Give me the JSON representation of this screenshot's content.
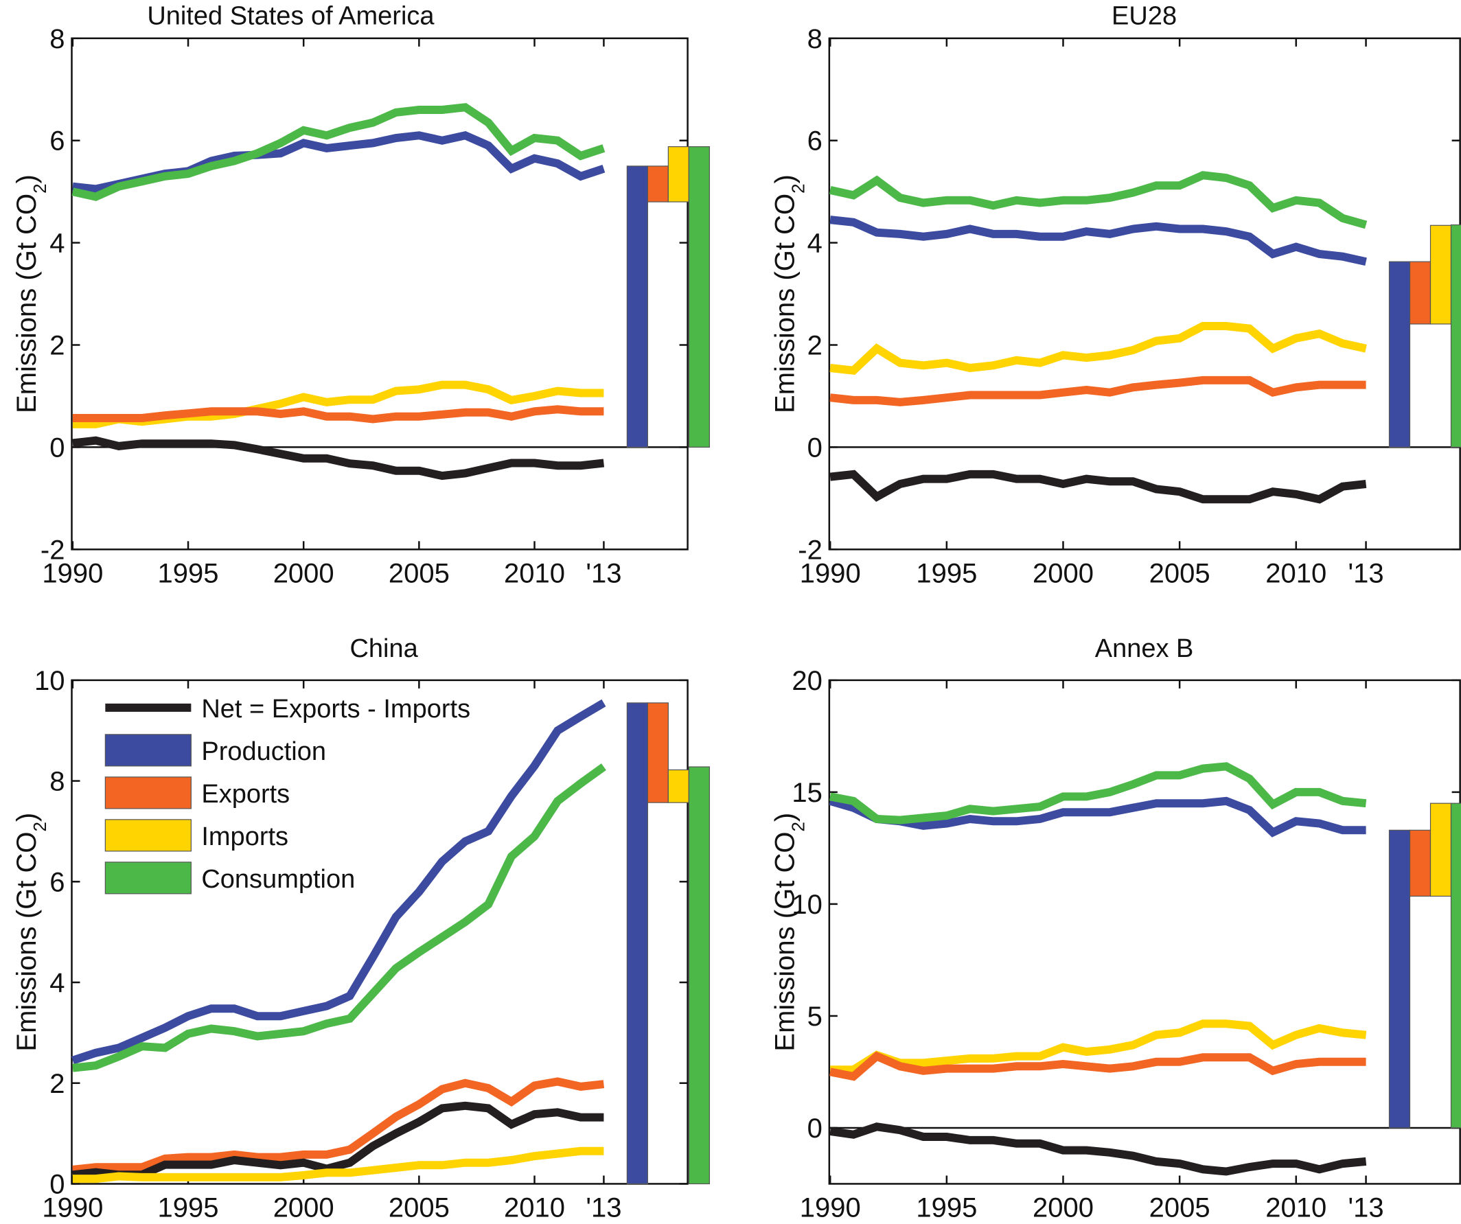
{
  "colors": {
    "net": "#231f20",
    "production": "#3c4ba0",
    "exports": "#f26522",
    "imports": "#ffd400",
    "consumption": "#4cb848",
    "axis": "#111111"
  },
  "legend": {
    "placement": "top-left of China panel",
    "entries": [
      {
        "key": "net",
        "label": "Net = Exports - Imports",
        "style": "line"
      },
      {
        "key": "production",
        "label": "Production",
        "style": "patch"
      },
      {
        "key": "exports",
        "label": "Exports",
        "style": "patch"
      },
      {
        "key": "imports",
        "label": "Imports",
        "style": "patch"
      },
      {
        "key": "consumption",
        "label": "Consumption",
        "style": "patch"
      }
    ]
  },
  "chart_data": [
    {
      "type": "line",
      "title": "United States of America",
      "xlabel": "",
      "ylabel": "Emissions (Gt CO2)",
      "ylim": [
        -2,
        8
      ],
      "yticks": [
        -2,
        0,
        2,
        4,
        6,
        8
      ],
      "xticks": [
        1990,
        1995,
        2000,
        2005,
        2010,
        2013
      ],
      "xtick_labels": [
        "1990",
        "1995",
        "2000",
        "2005",
        "2010",
        "'13"
      ],
      "x": [
        1990,
        1991,
        1992,
        1993,
        1994,
        1995,
        1996,
        1997,
        1998,
        1999,
        2000,
        2001,
        2002,
        2003,
        2004,
        2005,
        2006,
        2007,
        2008,
        2009,
        2010,
        2011,
        2012,
        2013
      ],
      "series": [
        {
          "key": "production",
          "name": "Production",
          "values": [
            5.1,
            5.05,
            5.15,
            5.25,
            5.35,
            5.4,
            5.6,
            5.7,
            5.72,
            5.75,
            5.95,
            5.85,
            5.9,
            5.95,
            6.05,
            6.1,
            6.0,
            6.1,
            5.9,
            5.45,
            5.65,
            5.55,
            5.3,
            5.45
          ]
        },
        {
          "key": "consumption",
          "name": "Consumption",
          "values": [
            5.0,
            4.9,
            5.1,
            5.2,
            5.3,
            5.35,
            5.5,
            5.6,
            5.75,
            5.95,
            6.2,
            6.1,
            6.25,
            6.35,
            6.55,
            6.6,
            6.6,
            6.65,
            6.35,
            5.8,
            6.05,
            6.0,
            5.7,
            5.85
          ]
        },
        {
          "key": "imports",
          "name": "Imports",
          "values": [
            0.45,
            0.45,
            0.55,
            0.5,
            0.55,
            0.6,
            0.6,
            0.65,
            0.75,
            0.85,
            0.98,
            0.88,
            0.93,
            0.93,
            1.1,
            1.13,
            1.22,
            1.22,
            1.13,
            0.92,
            1.0,
            1.1,
            1.06,
            1.06
          ]
        },
        {
          "key": "exports",
          "name": "Exports",
          "values": [
            0.57,
            0.57,
            0.57,
            0.57,
            0.62,
            0.66,
            0.7,
            0.7,
            0.7,
            0.65,
            0.7,
            0.6,
            0.6,
            0.55,
            0.6,
            0.6,
            0.64,
            0.68,
            0.68,
            0.6,
            0.7,
            0.74,
            0.7,
            0.7
          ]
        },
        {
          "key": "net",
          "name": "Net = Exports - Imports",
          "values": [
            0.08,
            0.13,
            0.02,
            0.07,
            0.07,
            0.07,
            0.07,
            0.04,
            -0.04,
            -0.13,
            -0.22,
            -0.22,
            -0.32,
            -0.36,
            -0.46,
            -0.46,
            -0.56,
            -0.51,
            -0.41,
            -0.31,
            -0.31,
            -0.36,
            -0.36,
            -0.31
          ]
        }
      ],
      "bars_2013": {
        "production": 5.5,
        "exports": 0.7,
        "imports": 1.08,
        "consumption": 5.88
      }
    },
    {
      "type": "line",
      "title": "EU28",
      "xlabel": "",
      "ylabel": "Emissions (Gt CO2)",
      "ylim": [
        -2,
        8
      ],
      "yticks": [
        -2,
        0,
        2,
        4,
        6,
        8
      ],
      "xticks": [
        1990,
        1995,
        2000,
        2005,
        2010,
        2013
      ],
      "xtick_labels": [
        "1990",
        "1995",
        "2000",
        "2005",
        "2010",
        "'13"
      ],
      "x": [
        1990,
        1991,
        1992,
        1993,
        1994,
        1995,
        1996,
        1997,
        1998,
        1999,
        2000,
        2001,
        2002,
        2003,
        2004,
        2005,
        2006,
        2007,
        2008,
        2009,
        2010,
        2011,
        2012,
        2013
      ],
      "series": [
        {
          "key": "production",
          "name": "Production",
          "values": [
            4.45,
            4.4,
            4.2,
            4.17,
            4.12,
            4.17,
            4.27,
            4.17,
            4.17,
            4.12,
            4.12,
            4.22,
            4.17,
            4.27,
            4.32,
            4.27,
            4.27,
            4.22,
            4.12,
            3.78,
            3.92,
            3.78,
            3.73,
            3.63
          ]
        },
        {
          "key": "consumption",
          "name": "Consumption",
          "values": [
            5.03,
            4.93,
            5.22,
            4.88,
            4.78,
            4.83,
            4.83,
            4.73,
            4.83,
            4.78,
            4.83,
            4.83,
            4.88,
            4.98,
            5.12,
            5.12,
            5.32,
            5.27,
            5.12,
            4.68,
            4.83,
            4.78,
            4.48,
            4.35
          ]
        },
        {
          "key": "imports",
          "name": "Imports",
          "values": [
            1.55,
            1.5,
            1.93,
            1.65,
            1.6,
            1.65,
            1.55,
            1.6,
            1.7,
            1.65,
            1.8,
            1.75,
            1.8,
            1.9,
            2.08,
            2.13,
            2.37,
            2.37,
            2.32,
            1.93,
            2.13,
            2.22,
            2.03,
            1.93
          ]
        },
        {
          "key": "exports",
          "name": "Exports",
          "values": [
            0.97,
            0.92,
            0.92,
            0.88,
            0.92,
            0.97,
            1.02,
            1.02,
            1.02,
            1.02,
            1.07,
            1.12,
            1.07,
            1.17,
            1.22,
            1.26,
            1.31,
            1.31,
            1.31,
            1.07,
            1.17,
            1.22,
            1.22,
            1.22
          ]
        },
        {
          "key": "net",
          "name": "Net = Exports - Imports",
          "values": [
            -0.58,
            -0.53,
            -0.97,
            -0.72,
            -0.62,
            -0.62,
            -0.53,
            -0.53,
            -0.62,
            -0.62,
            -0.72,
            -0.62,
            -0.67,
            -0.67,
            -0.82,
            -0.87,
            -1.02,
            -1.02,
            -1.02,
            -0.87,
            -0.92,
            -1.02,
            -0.77,
            -0.72
          ]
        }
      ],
      "bars_2013": {
        "production": 3.63,
        "exports": 1.22,
        "imports": 1.93,
        "consumption": 4.35
      }
    },
    {
      "type": "line",
      "title": "China",
      "xlabel": "",
      "ylabel": "Emissions (Gt CO2)",
      "ylim": [
        0,
        10
      ],
      "yticks": [
        0,
        2,
        4,
        6,
        8,
        10
      ],
      "xticks": [
        1990,
        1995,
        2000,
        2005,
        2010,
        2013
      ],
      "xtick_labels": [
        "1990",
        "1995",
        "2000",
        "2005",
        "2010",
        "'13"
      ],
      "x": [
        1990,
        1991,
        1992,
        1993,
        1994,
        1995,
        1996,
        1997,
        1998,
        1999,
        2000,
        2001,
        2002,
        2003,
        2004,
        2005,
        2006,
        2007,
        2008,
        2009,
        2010,
        2011,
        2012,
        2013
      ],
      "series": [
        {
          "key": "production",
          "name": "Production",
          "values": [
            2.45,
            2.6,
            2.7,
            2.9,
            3.1,
            3.33,
            3.48,
            3.48,
            3.33,
            3.33,
            3.43,
            3.53,
            3.73,
            4.5,
            5.3,
            5.8,
            6.4,
            6.8,
            7.0,
            7.7,
            8.3,
            9.0,
            9.28,
            9.55
          ]
        },
        {
          "key": "consumption",
          "name": "Consumption",
          "values": [
            2.3,
            2.35,
            2.53,
            2.73,
            2.7,
            2.98,
            3.08,
            3.03,
            2.93,
            2.98,
            3.03,
            3.18,
            3.28,
            3.78,
            4.28,
            4.6,
            4.9,
            5.2,
            5.55,
            6.5,
            6.9,
            7.6,
            7.95,
            8.28
          ]
        },
        {
          "key": "exports",
          "name": "Exports",
          "values": [
            0.28,
            0.33,
            0.33,
            0.33,
            0.5,
            0.53,
            0.53,
            0.58,
            0.53,
            0.53,
            0.58,
            0.58,
            0.68,
            1.0,
            1.33,
            1.58,
            1.88,
            2.0,
            1.9,
            1.63,
            1.95,
            2.03,
            1.93,
            1.98
          ]
        },
        {
          "key": "net",
          "name": "Net = Exports - Imports",
          "values": [
            0.18,
            0.23,
            0.18,
            0.18,
            0.38,
            0.38,
            0.38,
            0.47,
            0.42,
            0.37,
            0.42,
            0.3,
            0.42,
            0.75,
            1.0,
            1.23,
            1.5,
            1.55,
            1.5,
            1.18,
            1.38,
            1.42,
            1.32,
            1.32
          ]
        },
        {
          "key": "imports",
          "name": "Imports",
          "values": [
            0.1,
            0.1,
            0.15,
            0.13,
            0.13,
            0.13,
            0.13,
            0.13,
            0.13,
            0.13,
            0.17,
            0.22,
            0.22,
            0.27,
            0.32,
            0.37,
            0.37,
            0.42,
            0.42,
            0.47,
            0.55,
            0.6,
            0.65,
            0.65
          ]
        }
      ],
      "bars_2013": {
        "production": 9.55,
        "exports": 1.98,
        "imports": 0.65,
        "consumption": 8.28
      }
    },
    {
      "type": "line",
      "title": "Annex B",
      "xlabel": "",
      "ylabel": "Emissions (Gt CO2)",
      "ylim": [
        -2.5,
        20
      ],
      "yticks": [
        0,
        5,
        10,
        15,
        20
      ],
      "xticks": [
        1990,
        1995,
        2000,
        2005,
        2010,
        2013
      ],
      "xtick_labels": [
        "1990",
        "1995",
        "2000",
        "2005",
        "2010",
        "'13"
      ],
      "x": [
        1990,
        1991,
        1992,
        1993,
        1994,
        1995,
        1996,
        1997,
        1998,
        1999,
        2000,
        2001,
        2002,
        2003,
        2004,
        2005,
        2006,
        2007,
        2008,
        2009,
        2010,
        2011,
        2012,
        2013
      ],
      "series": [
        {
          "key": "production",
          "name": "Production",
          "values": [
            14.6,
            14.3,
            13.8,
            13.7,
            13.5,
            13.6,
            13.8,
            13.7,
            13.7,
            13.8,
            14.1,
            14.1,
            14.1,
            14.3,
            14.5,
            14.5,
            14.5,
            14.6,
            14.2,
            13.2,
            13.7,
            13.6,
            13.3,
            13.3
          ]
        },
        {
          "key": "consumption",
          "name": "Consumption",
          "values": [
            14.8,
            14.6,
            13.8,
            13.75,
            13.85,
            13.95,
            14.25,
            14.15,
            14.25,
            14.35,
            14.8,
            14.8,
            15.0,
            15.35,
            15.75,
            15.75,
            16.05,
            16.15,
            15.6,
            14.45,
            15.0,
            15.0,
            14.6,
            14.5
          ]
        },
        {
          "key": "imports",
          "name": "Imports",
          "values": [
            2.6,
            2.6,
            3.25,
            2.9,
            2.9,
            3.0,
            3.1,
            3.1,
            3.2,
            3.2,
            3.6,
            3.4,
            3.5,
            3.7,
            4.15,
            4.25,
            4.65,
            4.65,
            4.55,
            3.7,
            4.15,
            4.45,
            4.25,
            4.15
          ]
        },
        {
          "key": "exports",
          "name": "Exports",
          "values": [
            2.5,
            2.3,
            3.2,
            2.75,
            2.55,
            2.65,
            2.65,
            2.65,
            2.75,
            2.75,
            2.85,
            2.75,
            2.65,
            2.75,
            2.95,
            2.95,
            3.15,
            3.15,
            3.15,
            2.55,
            2.85,
            2.95,
            2.95,
            2.95
          ]
        },
        {
          "key": "net",
          "name": "Net = Exports - Imports",
          "values": [
            -0.15,
            -0.3,
            0.05,
            -0.1,
            -0.4,
            -0.4,
            -0.55,
            -0.55,
            -0.7,
            -0.7,
            -1.0,
            -1.0,
            -1.1,
            -1.25,
            -1.5,
            -1.6,
            -1.85,
            -1.95,
            -1.75,
            -1.6,
            -1.6,
            -1.85,
            -1.6,
            -1.5
          ]
        }
      ],
      "bars_2013": {
        "production": 13.3,
        "exports": 2.95,
        "imports": 4.15,
        "consumption": 14.5
      }
    }
  ]
}
